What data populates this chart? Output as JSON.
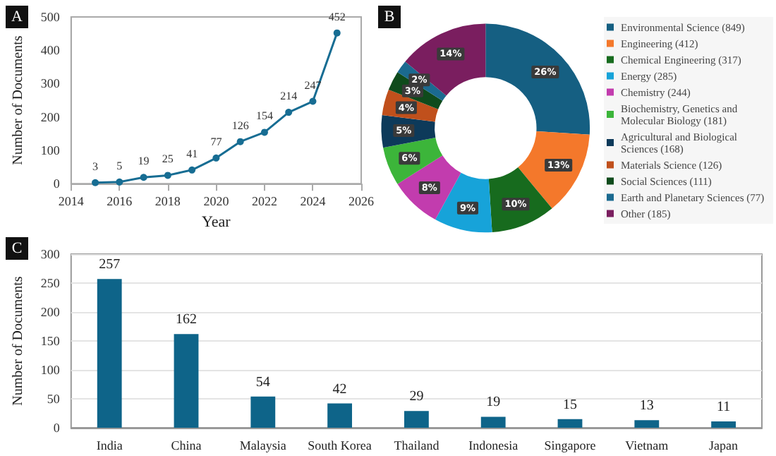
{
  "chart_data": [
    {
      "type": "line",
      "annotations": [
        "A"
      ],
      "xlabel": "Year",
      "ylabel": "Number of Documents",
      "x": [
        2015,
        2016,
        2017,
        2018,
        2019,
        2020,
        2021,
        2022,
        2023,
        2024,
        2025
      ],
      "values": [
        3,
        5,
        19,
        25,
        41,
        77,
        126,
        154,
        214,
        247,
        452
      ],
      "color": "#176d93",
      "xlim": [
        2014,
        2026
      ],
      "xticks": [
        2014,
        2016,
        2018,
        2020,
        2022,
        2024,
        2026
      ],
      "ylim": [
        0,
        500
      ],
      "yticks": [
        0,
        100,
        200,
        300,
        400,
        500
      ],
      "marker": "circle",
      "data_labels": true,
      "grid": false
    },
    {
      "type": "donut",
      "annotations": [
        "B"
      ],
      "categories": [
        "Environmental Science (849)",
        "Engineering (412)",
        "Chemical Engineering (317)",
        "Energy (285)",
        "Chemistry (244)",
        "Biochemistry, Genetics and Molecular Biology (181)",
        "Agricultural and Biological Sciences (168)",
        "Materials Science (126)",
        "Social Sciences (111)",
        "Earth and Planetary Sciences (77)",
        "Other (185)"
      ],
      "values": [
        26,
        13,
        10,
        9,
        8,
        6,
        5,
        4,
        3,
        2,
        14
      ],
      "value_labels": [
        "26%",
        "13%",
        "10%",
        "9%",
        "8%",
        "6%",
        "5%",
        "4%",
        "3%",
        "2%",
        "14%"
      ],
      "colors": [
        "#155f82",
        "#f4782b",
        "#176b1e",
        "#17a3d9",
        "#c23cae",
        "#3cb53a",
        "#0d3a5a",
        "#c0501c",
        "#0f4b1c",
        "#1b6a90",
        "#7a1e5f"
      ],
      "legend": "right"
    },
    {
      "type": "bar",
      "annotations": [
        "C"
      ],
      "ylabel": "Number of Documents",
      "categories": [
        "India",
        "China",
        "Malaysia",
        "South Korea",
        "Thailand",
        "Indonesia",
        "Singapore",
        "Vietnam",
        "Japan"
      ],
      "values": [
        257,
        162,
        54,
        42,
        29,
        19,
        15,
        13,
        11
      ],
      "color": "#0e6489",
      "ylim": [
        0,
        300
      ],
      "yticks": [
        0,
        50,
        100,
        150,
        200,
        250,
        300
      ],
      "data_labels": true,
      "grid": "y"
    }
  ]
}
